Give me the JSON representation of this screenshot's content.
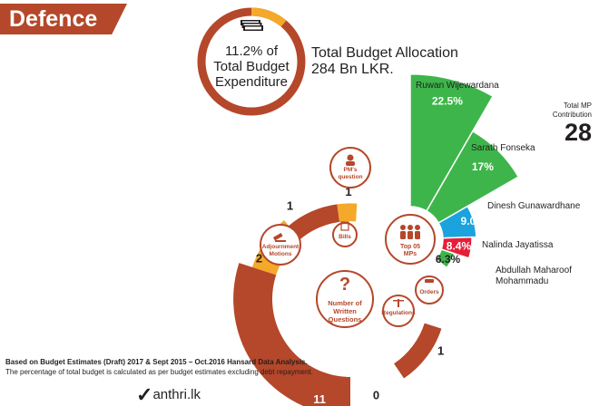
{
  "title": "Defence",
  "budget": {
    "share_line1": "11.2% of",
    "share_line2": "Total Budget",
    "share_line3": "Expenditure",
    "share_fraction": 0.112,
    "allocation_line1": "Total Budget Allocation",
    "allocation_line2": "284 Bn LKR."
  },
  "total_mp": {
    "label_line1": "Total MP",
    "label_line2": "Contribution",
    "value": "28"
  },
  "footnote": {
    "line1": "Based on Budget Estimates (Draft) 2017 & Sept 2015 – Oct.2016  Hansard Data Analysis.",
    "line2": "The percentage of total budget is calculated as per budget estimates excluding debt repayment."
  },
  "logo": "anthri.lk",
  "colors": {
    "brown": "#b5472a",
    "orange": "#f4a92a",
    "green": "#3db54a",
    "blue": "#1aa3dd",
    "red": "#e51f39",
    "dark_green": "#2f9e44"
  },
  "chart_data": [
    {
      "type": "bar",
      "subtype": "polar",
      "center_label": [
        "Top 05",
        "MPs"
      ],
      "categories": [
        "Ruwan Wijewardana",
        "Sarath Fonseka",
        "Dinesh Gunawardhane",
        "Nalinda Jayatissa",
        "Abdullah Maharoof Mohammadu"
      ],
      "values": [
        22.5,
        17,
        9.0,
        8.4,
        6.3
      ],
      "value_labels": [
        "22.5%",
        "17%",
        "9.0%",
        "8.4%",
        "6.3%"
      ],
      "colors": [
        "#3db54a",
        "#3db54a",
        "#1aa3dd",
        "#e51f39",
        "#3db54a"
      ],
      "name_lines": [
        [
          "Ruwan Wijewardana"
        ],
        [
          "Sarath Fonseka"
        ],
        [
          "Dinesh Gunawardhane"
        ],
        [
          "Nalinda Jayatissa"
        ],
        [
          "Abdullah Maharoof",
          "Mohammadu"
        ]
      ]
    },
    {
      "type": "bar",
      "subtype": "polar",
      "categories": [
        "PM's question",
        "Bills",
        "Adjournment Motions",
        "Number of Written Questions",
        "Regulations",
        "Orders"
      ],
      "category_lines": [
        [
          "PM's",
          "question"
        ],
        [
          "Bills"
        ],
        [
          "Adjournment",
          "Motions"
        ],
        [
          "Number of",
          "Written",
          "Questions"
        ],
        [
          "Regulations"
        ],
        [
          "Orders"
        ]
      ],
      "values": [
        1,
        1,
        2,
        11,
        0,
        1
      ],
      "value_labels": [
        "1",
        "1",
        "2",
        "11",
        "0",
        "1"
      ],
      "icons": [
        "person-icon",
        "document-icon",
        "gavel-icon",
        "question-icon",
        "balance-icon",
        "hammer-icon"
      ]
    }
  ]
}
